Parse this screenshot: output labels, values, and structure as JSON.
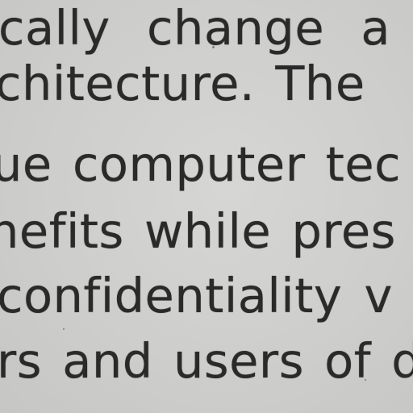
{
  "document": {
    "lines": [
      "cally change a",
      "chitecture. The",
      "ue computer tec",
      "nefits while pres",
      "confidentiality v",
      "rs and users of d"
    ]
  }
}
